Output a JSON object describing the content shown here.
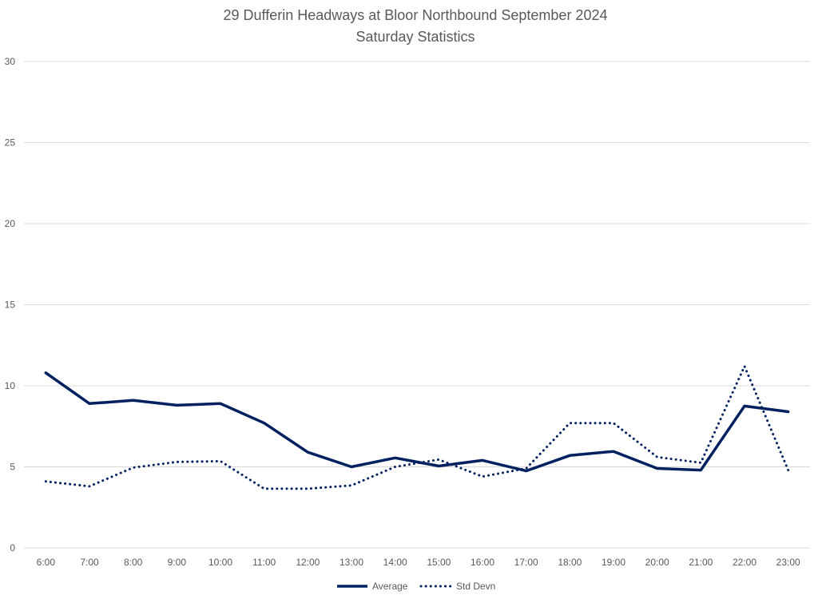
{
  "chart_data": {
    "type": "line",
    "title": "29 Dufferin Headways at Bloor Northbound September 2024",
    "subtitle": "Saturday Statistics",
    "xlabel": "",
    "ylabel": "",
    "categories": [
      "6:00",
      "7:00",
      "8:00",
      "9:00",
      "10:00",
      "11:00",
      "12:00",
      "13:00",
      "14:00",
      "15:00",
      "16:00",
      "17:00",
      "18:00",
      "19:00",
      "20:00",
      "21:00",
      "22:00",
      "23:00"
    ],
    "ylim": [
      0,
      30
    ],
    "yticks": [
      0,
      5,
      10,
      15,
      20,
      25,
      30
    ],
    "grid": true,
    "legend_position": "bottom",
    "series": [
      {
        "name": "Average",
        "style": "solid",
        "color": "#002060",
        "values": [
          10.8,
          8.9,
          9.1,
          8.8,
          8.9,
          7.7,
          5.9,
          5.0,
          5.55,
          5.05,
          5.4,
          4.75,
          5.7,
          5.95,
          4.9,
          4.8,
          8.75,
          8.4
        ]
      },
      {
        "name": "Std Devn",
        "style": "dotted",
        "color": "#002060",
        "values": [
          4.1,
          3.8,
          4.95,
          5.3,
          5.35,
          3.65,
          3.65,
          3.85,
          5.0,
          5.45,
          4.4,
          4.9,
          7.7,
          7.7,
          5.6,
          5.25,
          11.2,
          4.8
        ]
      }
    ]
  }
}
